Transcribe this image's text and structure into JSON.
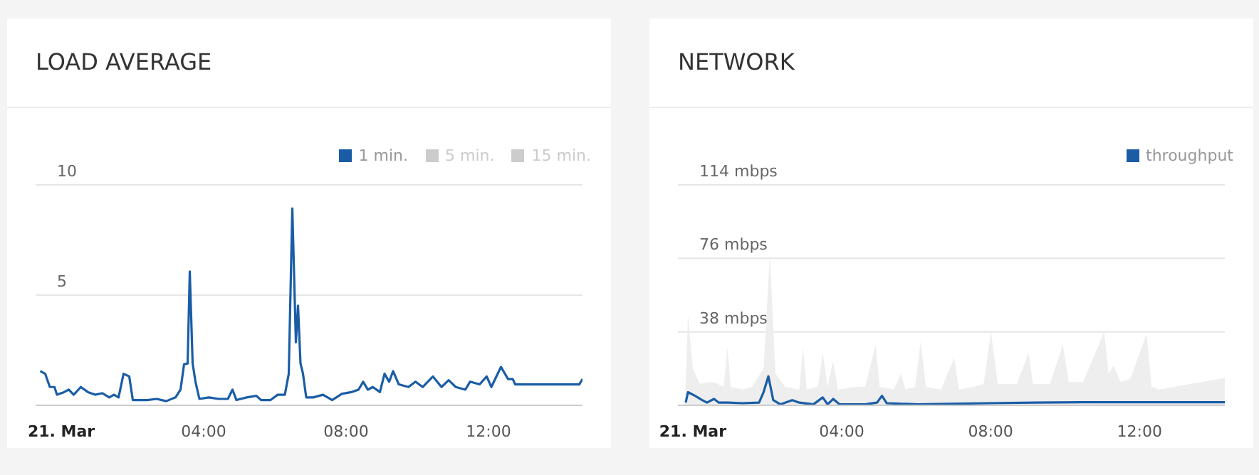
{
  "chart_data": [
    {
      "type": "line",
      "title": "LOAD AVERAGE",
      "xlim": [
        -0.72,
        14.64
      ],
      "xticks": [
        {
          "value": 0,
          "label": "21. Mar"
        },
        {
          "value": 4,
          "label": "04:00"
        },
        {
          "value": 8,
          "label": "08:00"
        },
        {
          "value": 12,
          "label": "12:00"
        }
      ],
      "ylim": [
        0,
        10
      ],
      "yticks": [
        {
          "value": 0,
          "label": null
        },
        5,
        10
      ],
      "grid": "y",
      "legend": "top right",
      "marker": "none",
      "series": [
        {
          "name": "1 min.",
          "color": "#1a5da6",
          "x": [
            -0.59,
            -0.45,
            -0.32,
            -0.19,
            -0.12,
            0.08,
            0.21,
            0.35,
            0.55,
            0.75,
            0.95,
            1.15,
            1.35,
            1.48,
            1.61,
            1.75,
            1.91,
            2.01,
            2.41,
            2.68,
            2.95,
            3.21,
            3.35,
            3.45,
            3.55,
            3.61,
            3.69,
            3.77,
            3.88,
            4.15,
            4.41,
            4.68,
            4.81,
            4.92,
            5.21,
            5.48,
            5.61,
            5.88,
            6.08,
            6.28,
            6.39,
            6.49,
            6.59,
            6.65,
            6.72,
            6.79,
            6.88,
            7.08,
            7.35,
            7.61,
            7.88,
            8.15,
            8.35,
            8.48,
            8.61,
            8.75,
            8.95,
            9.08,
            9.21,
            9.32,
            9.48,
            9.75,
            9.95,
            10.15,
            10.44,
            10.68,
            10.88,
            11.08,
            11.35,
            11.48,
            11.75,
            11.95,
            12.08,
            12.35,
            12.55,
            12.68,
            12.75,
            14.55,
            14.64
          ],
          "values": [
            1.55,
            1.43,
            0.83,
            0.83,
            0.48,
            0.6,
            0.71,
            0.48,
            0.83,
            0.6,
            0.48,
            0.55,
            0.36,
            0.48,
            0.36,
            1.43,
            1.31,
            0.24,
            0.24,
            0.29,
            0.19,
            0.36,
            0.71,
            1.86,
            1.9,
            6.07,
            1.9,
            1.07,
            0.29,
            0.36,
            0.29,
            0.29,
            0.71,
            0.24,
            0.36,
            0.43,
            0.24,
            0.24,
            0.48,
            0.48,
            1.43,
            8.93,
            2.86,
            4.52,
            1.9,
            1.43,
            0.36,
            0.36,
            0.48,
            0.24,
            0.52,
            0.6,
            0.71,
            1.07,
            0.71,
            0.83,
            0.6,
            1.43,
            1.07,
            1.55,
            0.95,
            0.83,
            1.07,
            0.83,
            1.31,
            0.83,
            1.14,
            0.83,
            0.71,
            1.07,
            0.95,
            1.31,
            0.83,
            1.74,
            1.19,
            1.19,
            0.95,
            0.95,
            1.19
          ]
        },
        {
          "name": "5 min.",
          "color": "#cccccc"
        },
        {
          "name": "15 min.",
          "color": "#cccccc"
        }
      ]
    },
    {
      "type": "line",
      "title": "NETWORK",
      "xlim": [
        -0.4,
        14.29
      ],
      "xticks": [
        {
          "value": 0,
          "label": "21. Mar"
        },
        {
          "value": 4,
          "label": "04:00"
        },
        {
          "value": 8,
          "label": "08:00"
        },
        {
          "value": 12,
          "label": "12:00"
        }
      ],
      "ylim": [
        0,
        114
      ],
      "yticks": [
        {
          "value": 0,
          "label": null
        },
        {
          "value": 38,
          "label": "38 mbps"
        },
        {
          "value": 76,
          "label": "76 mbps"
        },
        {
          "value": 114,
          "label": "114 mbps"
        }
      ],
      "grid": "y",
      "legend": "top right",
      "marker": "none",
      "series": [
        {
          "type": "area",
          "color": "#eeeeee",
          "x": [
            -0.21,
            -0.13,
            0.0,
            0.19,
            0.44,
            0.63,
            0.83,
            0.93,
            1.02,
            1.33,
            1.59,
            1.9,
            2.07,
            2.22,
            2.48,
            2.86,
            2.96,
            3.06,
            3.36,
            3.49,
            3.62,
            3.77,
            3.9,
            4.38,
            4.63,
            4.91,
            5.02,
            5.4,
            5.59,
            5.71,
            5.97,
            6.12,
            6.26,
            6.67,
            7.02,
            7.15,
            7.55,
            7.81,
            8.01,
            8.19,
            8.7,
            9.02,
            9.14,
            9.59,
            9.94,
            10.1,
            10.48,
            11.05,
            11.17,
            11.3,
            11.49,
            11.75,
            12.19,
            12.32,
            12.51,
            14.29
          ],
          "values": [
            1.4,
            46.5,
            19,
            11,
            12,
            11.5,
            9.6,
            30,
            9.6,
            8.2,
            9.6,
            19,
            78,
            16.4,
            9.6,
            8.2,
            30,
            8.2,
            9.6,
            27,
            9.6,
            23,
            8.2,
            9.6,
            9.6,
            31.4,
            9.6,
            8.2,
            16.4,
            8.2,
            9.6,
            33,
            9.6,
            8.2,
            24.6,
            8.2,
            9.6,
            11,
            38,
            11,
            11,
            27,
            11,
            11,
            31.4,
            12,
            12,
            38,
            16.4,
            20.5,
            12,
            13.7,
            37,
            9.6,
            8.2,
            14.2
          ]
        },
        {
          "name": "throughput",
          "color": "#1a5da6",
          "x": [
            -0.19,
            -0.13,
            0.06,
            0.25,
            0.38,
            0.57,
            0.7,
            0.95,
            1.33,
            1.78,
            1.9,
            2.03,
            2.16,
            2.35,
            2.67,
            2.86,
            3.24,
            3.49,
            3.62,
            3.77,
            3.94,
            4.63,
            4.95,
            5.08,
            5.21,
            6.03,
            7.94,
            9.21,
            10.48,
            12.13,
            14.29
          ],
          "values": [
            1.4,
            6.8,
            4.9,
            2.7,
            1.4,
            3.3,
            1.4,
            1.4,
            1.1,
            1.4,
            6.8,
            15,
            2.7,
            0.5,
            2.7,
            1.4,
            0.5,
            4.1,
            0.5,
            3.3,
            0.5,
            0.5,
            1.4,
            4.9,
            1.1,
            0.5,
            1.1,
            1.4,
            1.6,
            1.6,
            1.6
          ]
        }
      ]
    }
  ]
}
